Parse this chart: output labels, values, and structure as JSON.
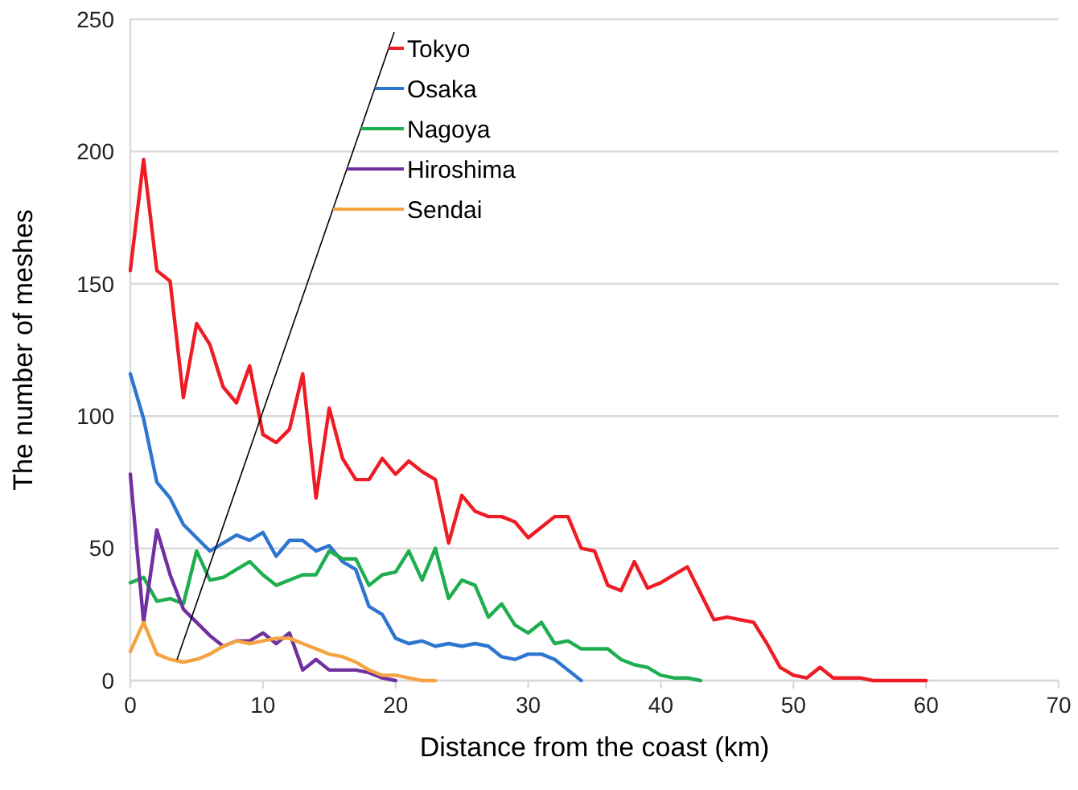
{
  "chart_data": {
    "type": "line",
    "xlabel": "Distance from the coast (km)",
    "ylabel": "The number of meshes",
    "xlim": [
      0,
      70
    ],
    "xticks": [
      0,
      10,
      20,
      30,
      40,
      50,
      60,
      70
    ],
    "ylim": [
      0,
      250
    ],
    "yticks": [
      0,
      50,
      100,
      150,
      200,
      250
    ],
    "grid": "y",
    "legend": "top",
    "marker": "none",
    "line_style": "solid",
    "series": [
      {
        "name": "Tokyo",
        "color": "#ee1c25",
        "x": [
          0,
          1,
          2,
          3,
          4,
          5,
          6,
          7,
          8,
          9,
          10,
          11,
          12,
          13,
          14,
          15,
          16,
          17,
          18,
          19,
          20,
          21,
          22,
          23,
          24,
          25,
          26,
          27,
          28,
          29,
          30,
          31,
          32,
          33,
          34,
          35,
          36,
          37,
          38,
          39,
          40,
          41,
          42,
          43,
          44,
          45,
          46,
          47,
          48,
          49,
          50,
          51,
          52,
          53,
          54,
          55,
          56,
          57,
          58,
          59,
          60
        ],
        "values": [
          155,
          197,
          155,
          151,
          107,
          135,
          127,
          111,
          105,
          119,
          93,
          90,
          95,
          116,
          69,
          103,
          84,
          76,
          76,
          84,
          78,
          83,
          79,
          76,
          52,
          70,
          64,
          62,
          62,
          60,
          54,
          58,
          62,
          62,
          50,
          49,
          36,
          34,
          45,
          35,
          37,
          40,
          43,
          33,
          23,
          24,
          23,
          22,
          14,
          5,
          2,
          1,
          5,
          1,
          1,
          1,
          0,
          0,
          0,
          0,
          0
        ]
      },
      {
        "name": "Osaka",
        "color": "#2e75d0",
        "x": [
          0,
          1,
          2,
          3,
          4,
          5,
          6,
          7,
          8,
          9,
          10,
          11,
          12,
          13,
          14,
          15,
          16,
          17,
          18,
          19,
          20,
          21,
          22,
          23,
          24,
          25,
          26,
          27,
          28,
          29,
          30,
          31,
          32,
          33,
          34
        ],
        "values": [
          116,
          99,
          75,
          69,
          59,
          54,
          49,
          52,
          55,
          53,
          56,
          47,
          53,
          53,
          49,
          51,
          45,
          42,
          28,
          25,
          16,
          14,
          15,
          13,
          14,
          13,
          14,
          13,
          9,
          8,
          10,
          10,
          8,
          4,
          0
        ]
      },
      {
        "name": "Nagoya",
        "color": "#1fae4f",
        "x": [
          0,
          1,
          2,
          3,
          4,
          5,
          6,
          7,
          8,
          9,
          10,
          11,
          12,
          13,
          14,
          15,
          16,
          17,
          18,
          19,
          20,
          21,
          22,
          23,
          24,
          25,
          26,
          27,
          28,
          29,
          30,
          31,
          32,
          33,
          34,
          35,
          36,
          37,
          38,
          39,
          40,
          41,
          42,
          43
        ],
        "values": [
          37,
          39,
          30,
          31,
          29,
          49,
          38,
          39,
          42,
          45,
          40,
          36,
          38,
          40,
          40,
          49,
          46,
          46,
          36,
          40,
          41,
          49,
          38,
          50,
          31,
          38,
          36,
          24,
          29,
          21,
          18,
          22,
          14,
          15,
          12,
          12,
          12,
          8,
          6,
          5,
          2,
          1,
          1,
          0
        ]
      },
      {
        "name": "Hiroshima",
        "color": "#7030a0",
        "x": [
          0,
          1,
          2,
          3,
          4,
          5,
          6,
          7,
          8,
          9,
          10,
          11,
          12,
          13,
          14,
          15,
          16,
          17,
          18,
          19,
          20
        ],
        "values": [
          78,
          22,
          57,
          40,
          27,
          22,
          17,
          13,
          15,
          15,
          18,
          14,
          18,
          4,
          8,
          4,
          4,
          4,
          3,
          1,
          0
        ]
      },
      {
        "name": "Sendai",
        "color": "#f4a340",
        "x": [
          0,
          1,
          2,
          3,
          4,
          5,
          6,
          7,
          8,
          9,
          10,
          11,
          12,
          13,
          14,
          15,
          16,
          17,
          18,
          19,
          20,
          21,
          22,
          23
        ],
        "values": [
          11,
          22,
          10,
          8,
          7,
          8,
          10,
          13,
          15,
          14,
          15,
          16,
          16,
          14,
          12,
          10,
          9,
          7,
          4,
          2,
          2,
          1,
          0,
          0
        ]
      }
    ]
  }
}
